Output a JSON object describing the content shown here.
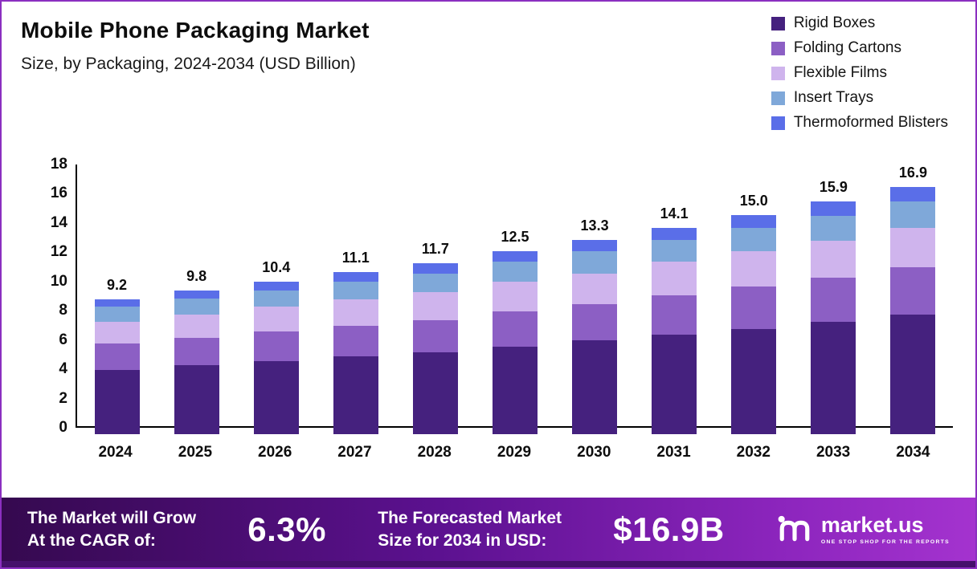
{
  "header": {
    "title": "Mobile Phone Packaging Market",
    "subtitle": "Size, by Packaging, 2024-2034 (USD Billion)"
  },
  "chart_data": {
    "type": "bar",
    "stacked": true,
    "title": "Mobile Phone Packaging Market Size, by Packaging, 2024-2034 (USD Billion)",
    "categories": [
      "2024",
      "2025",
      "2026",
      "2027",
      "2028",
      "2029",
      "2030",
      "2031",
      "2032",
      "2033",
      "2034"
    ],
    "series": [
      {
        "name": "Rigid Boxes",
        "color": "#45217e",
        "values": [
          4.4,
          4.7,
          5.0,
          5.3,
          5.6,
          6.0,
          6.4,
          6.8,
          7.2,
          7.7,
          8.2
        ]
      },
      {
        "name": "Folding Cartons",
        "color": "#8c5fc4",
        "values": [
          1.8,
          1.9,
          2.0,
          2.1,
          2.2,
          2.4,
          2.5,
          2.7,
          2.9,
          3.0,
          3.2
        ]
      },
      {
        "name": "Flexible Films",
        "color": "#cfb4ed",
        "values": [
          1.5,
          1.6,
          1.7,
          1.8,
          1.9,
          2.0,
          2.1,
          2.3,
          2.4,
          2.5,
          2.7
        ]
      },
      {
        "name": "Insert Trays",
        "color": "#7fa8d9",
        "values": [
          1.0,
          1.1,
          1.1,
          1.2,
          1.3,
          1.4,
          1.5,
          1.5,
          1.6,
          1.7,
          1.8
        ]
      },
      {
        "name": "Thermoformed Blisters",
        "color": "#5a6ee8",
        "values": [
          0.5,
          0.5,
          0.6,
          0.7,
          0.7,
          0.7,
          0.8,
          0.8,
          0.9,
          1.0,
          1.0
        ]
      }
    ],
    "totals": [
      "9.2",
      "9.8",
      "10.4",
      "11.1",
      "11.7",
      "12.5",
      "13.3",
      "14.1",
      "15.0",
      "15.9",
      "16.9"
    ],
    "ylim": [
      0,
      18
    ],
    "yticks": [
      0,
      2,
      4,
      6,
      8,
      10,
      12,
      14,
      16,
      18
    ],
    "grid": false,
    "legend_position": "top-right"
  },
  "banner": {
    "cagr_label_lines": [
      "The Market will Grow",
      "At the CAGR of:"
    ],
    "cagr_value": "6.3%",
    "forecast_label_lines": [
      "The Forecasted Market",
      "Size for 2034 in USD:"
    ],
    "forecast_value": "$16.9B",
    "brand_name": "market.us",
    "brand_tagline": "ONE STOP SHOP FOR THE REPORTS"
  }
}
